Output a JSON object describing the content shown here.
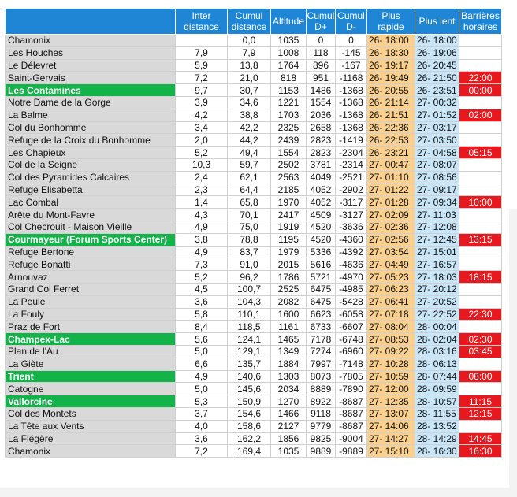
{
  "headers": {
    "name": "",
    "inter": "Inter distance",
    "cumul": "Cumul distance",
    "altitude": "Altitude",
    "dplus": "Cumul D+",
    "dminus": "Cumul D-",
    "fast": "Plus rapide",
    "slow": "Plus lent",
    "barrier": "Barrières horaires"
  },
  "colors": {
    "header": "#1f86d6",
    "stage": "#13b34a",
    "fast": "#fad08f",
    "slow": "#c8e6f8",
    "barrier": "#e8191e",
    "name": "#d9d9d9"
  },
  "rows": [
    {
      "name": "Chamonix",
      "stage": false,
      "inter": "",
      "cumul": "0,0",
      "alt": "1035",
      "dplus": "0",
      "dminus": "0",
      "fast": "26- 18:00",
      "slow": "26- 18:00",
      "barrier": ""
    },
    {
      "name": "Les Houches",
      "stage": false,
      "inter": "7,9",
      "cumul": "7,9",
      "alt": "1008",
      "dplus": "118",
      "dminus": "-145",
      "fast": "26- 18:30",
      "slow": "26- 19:06",
      "barrier": ""
    },
    {
      "name": "Le Délevret",
      "stage": false,
      "inter": "5,9",
      "cumul": "13,8",
      "alt": "1764",
      "dplus": "896",
      "dminus": "-167",
      "fast": "26- 19:17",
      "slow": "26- 20:45",
      "barrier": ""
    },
    {
      "name": "Saint-Gervais",
      "stage": false,
      "inter": "7,2",
      "cumul": "21,0",
      "alt": "818",
      "dplus": "951",
      "dminus": "-1168",
      "fast": "26- 19:49",
      "slow": "26- 21:50",
      "barrier": "22:00"
    },
    {
      "name": "Les Contamines",
      "stage": true,
      "inter": "9,7",
      "cumul": "30,7",
      "alt": "1153",
      "dplus": "1486",
      "dminus": "-1368",
      "fast": "26- 20:55",
      "slow": "26- 23:51",
      "barrier": "00:00"
    },
    {
      "name": "Notre Dame de la Gorge",
      "stage": false,
      "inter": "3,9",
      "cumul": "34,6",
      "alt": "1221",
      "dplus": "1554",
      "dminus": "-1368",
      "fast": "26- 21:14",
      "slow": "27- 00:32",
      "barrier": ""
    },
    {
      "name": "La Balme",
      "stage": false,
      "inter": "4,2",
      "cumul": "38,8",
      "alt": "1703",
      "dplus": "2036",
      "dminus": "-1368",
      "fast": "26- 21:51",
      "slow": "27- 01:52",
      "barrier": "02:00"
    },
    {
      "name": "Col du Bonhomme",
      "stage": false,
      "inter": "3,4",
      "cumul": "42,2",
      "alt": "2325",
      "dplus": "2658",
      "dminus": "-1368",
      "fast": "26- 22:36",
      "slow": "27- 03:17",
      "barrier": ""
    },
    {
      "name": "Refuge de la Croix du Bonhomme",
      "stage": false,
      "inter": "2,0",
      "cumul": "44,2",
      "alt": "2439",
      "dplus": "2823",
      "dminus": "-1419",
      "fast": "26- 22:53",
      "slow": "27- 03:50",
      "barrier": ""
    },
    {
      "name": "Les Chapieux",
      "stage": false,
      "inter": "5,2",
      "cumul": "49,4",
      "alt": "1554",
      "dplus": "2823",
      "dminus": "-2304",
      "fast": "26- 23:21",
      "slow": "27- 04:58",
      "barrier": "05:15"
    },
    {
      "name": "Col de la Seigne",
      "stage": false,
      "inter": "10,3",
      "cumul": "59,7",
      "alt": "2502",
      "dplus": "3781",
      "dminus": "-2314",
      "fast": "27- 00:47",
      "slow": "27- 08:07",
      "barrier": ""
    },
    {
      "name": "Col des Pyramides Calcaires",
      "stage": false,
      "inter": "2,4",
      "cumul": "62,1",
      "alt": "2563",
      "dplus": "4049",
      "dminus": "-2521",
      "fast": "27- 01:10",
      "slow": "27- 08:56",
      "barrier": ""
    },
    {
      "name": "Refuge Elisabetta",
      "stage": false,
      "inter": "2,3",
      "cumul": "64,4",
      "alt": "2185",
      "dplus": "4052",
      "dminus": "-2902",
      "fast": "27- 01:22",
      "slow": "27- 09:17",
      "barrier": ""
    },
    {
      "name": "Lac Combal",
      "stage": false,
      "inter": "1,4",
      "cumul": "65,8",
      "alt": "1970",
      "dplus": "4052",
      "dminus": "-3117",
      "fast": "27- 01:28",
      "slow": "27- 09:34",
      "barrier": "10:00"
    },
    {
      "name": "Arête du Mont-Favre",
      "stage": false,
      "inter": "4,3",
      "cumul": "70,1",
      "alt": "2417",
      "dplus": "4509",
      "dminus": "-3127",
      "fast": "27- 02:09",
      "slow": "27- 11:03",
      "barrier": ""
    },
    {
      "name": "Col Checrouit - Maison Vieille",
      "stage": false,
      "inter": "4,9",
      "cumul": "75,0",
      "alt": "1919",
      "dplus": "4520",
      "dminus": "-3636",
      "fast": "27- 02:36",
      "slow": "27- 12:08",
      "barrier": ""
    },
    {
      "name": "Courmayeur (Forum Sports Center)",
      "stage": true,
      "inter": "3,8",
      "cumul": "78,8",
      "alt": "1195",
      "dplus": "4520",
      "dminus": "-4360",
      "fast": "27- 02:56",
      "slow": "27- 12:45",
      "barrier": "13:15"
    },
    {
      "name": "Refuge Bertone",
      "stage": false,
      "inter": "4,9",
      "cumul": "83,7",
      "alt": "1979",
      "dplus": "5336",
      "dminus": "-4392",
      "fast": "27- 03:54",
      "slow": "27- 15:01",
      "barrier": ""
    },
    {
      "name": "Refuge Bonatti",
      "stage": false,
      "inter": "7,3",
      "cumul": "91,0",
      "alt": "2015",
      "dplus": "5616",
      "dminus": "-4636",
      "fast": "27- 04:49",
      "slow": "27- 16:57",
      "barrier": ""
    },
    {
      "name": "Arnouvaz",
      "stage": false,
      "inter": "5,2",
      "cumul": "96,2",
      "alt": "1786",
      "dplus": "5721",
      "dminus": "-4970",
      "fast": "27- 05:23",
      "slow": "27- 18:03",
      "barrier": "18:15"
    },
    {
      "name": "Grand Col Ferret",
      "stage": false,
      "inter": "4,5",
      "cumul": "100,7",
      "alt": "2525",
      "dplus": "6475",
      "dminus": "-4985",
      "fast": "27- 06:23",
      "slow": "27- 20:12",
      "barrier": ""
    },
    {
      "name": "La Peule",
      "stage": false,
      "inter": "3,6",
      "cumul": "104,3",
      "alt": "2082",
      "dplus": "6475",
      "dminus": "-5428",
      "fast": "27- 06:41",
      "slow": "27- 20:52",
      "barrier": ""
    },
    {
      "name": "La Fouly",
      "stage": false,
      "inter": "5,8",
      "cumul": "110,1",
      "alt": "1600",
      "dplus": "6623",
      "dminus": "-6058",
      "fast": "27- 07:18",
      "slow": "27- 22:52",
      "barrier": "22:30"
    },
    {
      "name": "Praz de Fort",
      "stage": false,
      "inter": "8,4",
      "cumul": "118,5",
      "alt": "1161",
      "dplus": "6733",
      "dminus": "-6607",
      "fast": "27- 08:04",
      "slow": "28- 00:04",
      "barrier": ""
    },
    {
      "name": "Champex-Lac",
      "stage": true,
      "inter": "5,6",
      "cumul": "124,1",
      "alt": "1465",
      "dplus": "7178",
      "dminus": "-6748",
      "fast": "27- 08:53",
      "slow": "28- 02:04",
      "barrier": "02:30"
    },
    {
      "name": "Plan de l'Au",
      "stage": false,
      "inter": "5,0",
      "cumul": "129,1",
      "alt": "1349",
      "dplus": "7274",
      "dminus": "-6960",
      "fast": "27- 09:22",
      "slow": "28- 03:16",
      "barrier": "03:45"
    },
    {
      "name": "La Giète",
      "stage": false,
      "inter": "6,6",
      "cumul": "135,7",
      "alt": "1884",
      "dplus": "7997",
      "dminus": "-7148",
      "fast": "27- 10:28",
      "slow": "28- 06:13",
      "barrier": ""
    },
    {
      "name": "Trient",
      "stage": true,
      "inter": "4,9",
      "cumul": "140,6",
      "alt": "1303",
      "dplus": "8073",
      "dminus": "-7805",
      "fast": "27- 10:59",
      "slow": "28- 07:44",
      "barrier": "08:00"
    },
    {
      "name": "Catogne",
      "stage": false,
      "inter": "5,0",
      "cumul": "145,6",
      "alt": "2034",
      "dplus": "8889",
      "dminus": "-7890",
      "fast": "27- 12:00",
      "slow": "28- 09:59",
      "barrier": ""
    },
    {
      "name": "Vallorcine",
      "stage": true,
      "inter": "5,3",
      "cumul": "150,9",
      "alt": "1270",
      "dplus": "8922",
      "dminus": "-8687",
      "fast": "27- 12:35",
      "slow": "28- 10:57",
      "barrier": "11:15"
    },
    {
      "name": "Col des Montets",
      "stage": false,
      "inter": "3,7",
      "cumul": "154,6",
      "alt": "1466",
      "dplus": "9118",
      "dminus": "-8687",
      "fast": "27- 13:07",
      "slow": "28- 11:55",
      "barrier": "12:15"
    },
    {
      "name": "La Tête aux Vents",
      "stage": false,
      "inter": "4,0",
      "cumul": "158,6",
      "alt": "2127",
      "dplus": "9779",
      "dminus": "-8687",
      "fast": "27- 14:06",
      "slow": "28- 13:52",
      "barrier": ""
    },
    {
      "name": "La Flégère",
      "stage": false,
      "inter": "3,6",
      "cumul": "162,2",
      "alt": "1856",
      "dplus": "9825",
      "dminus": "-9004",
      "fast": "27- 14:27",
      "slow": "28- 14:29",
      "barrier": "14:45"
    },
    {
      "name": "Chamonix",
      "stage": false,
      "inter": "7,2",
      "cumul": "169,4",
      "alt": "1035",
      "dplus": "9889",
      "dminus": "-9889",
      "fast": "27- 15:10",
      "slow": "28- 16:30",
      "barrier": "16:30"
    }
  ]
}
